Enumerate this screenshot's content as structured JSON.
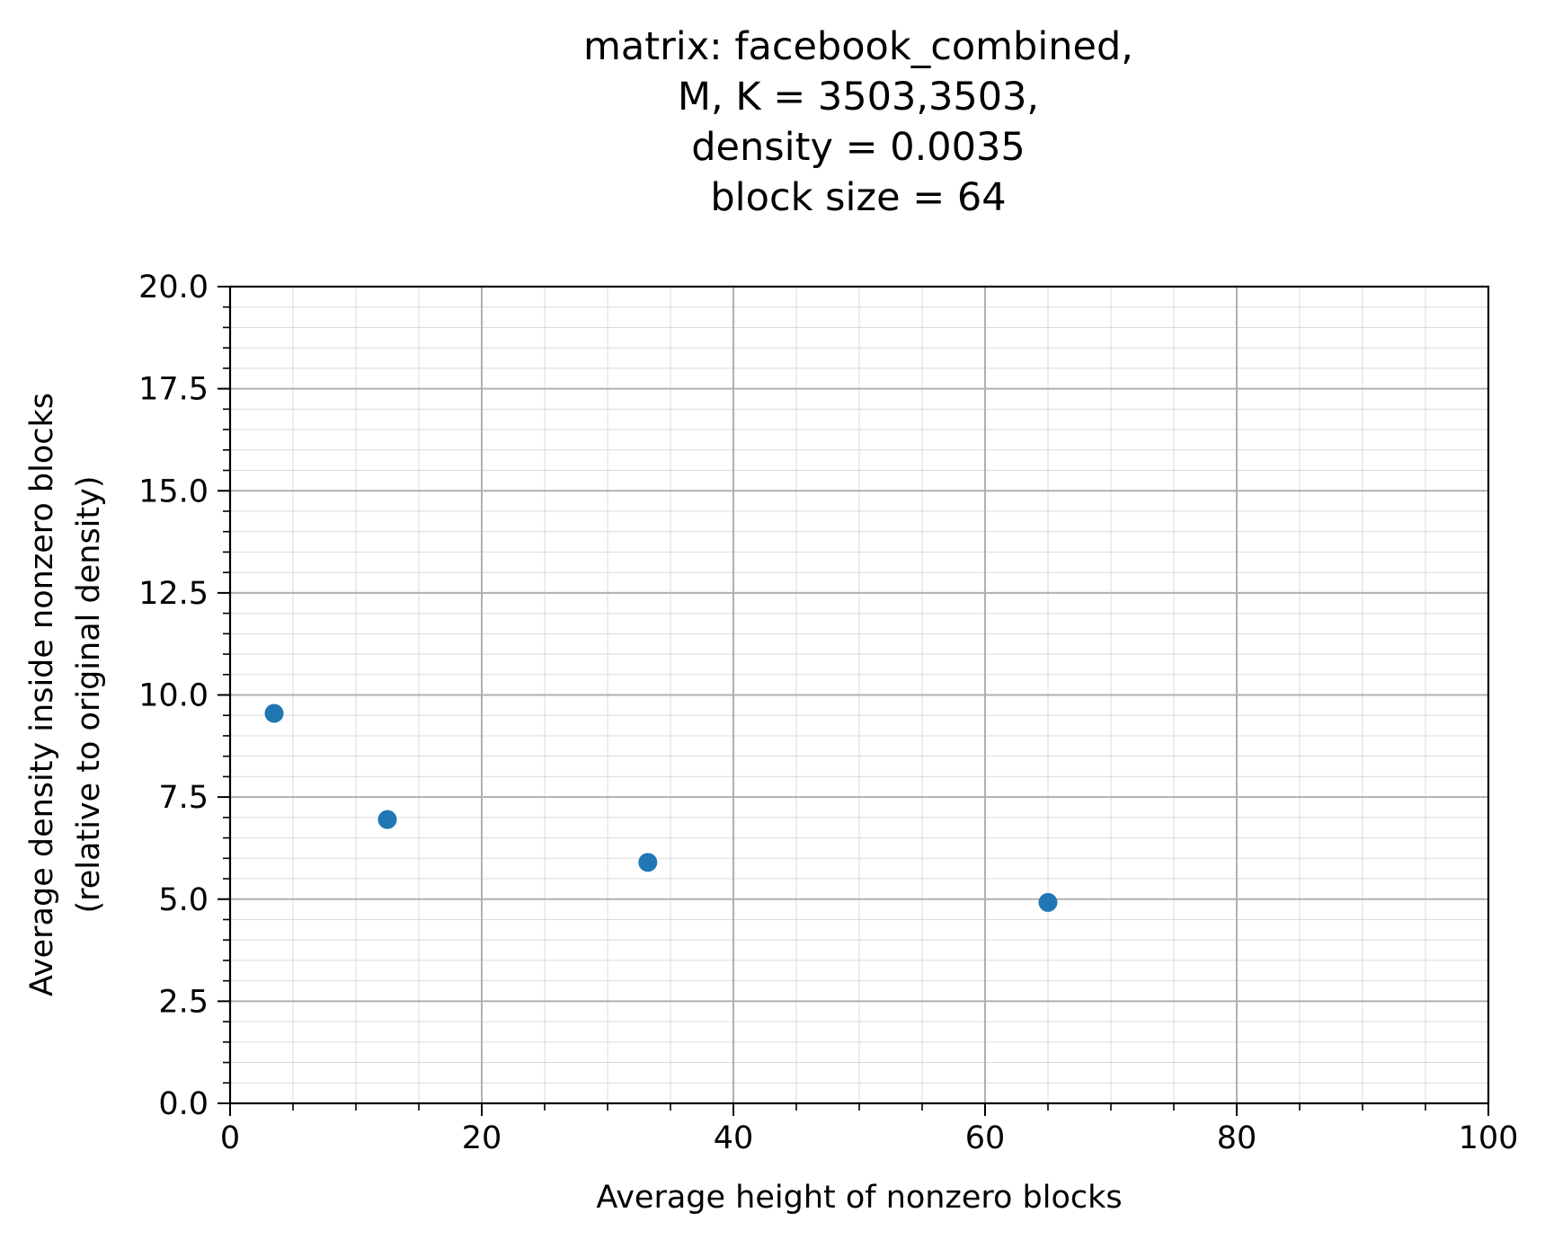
{
  "chart_data": {
    "type": "scatter",
    "title_lines": [
      "matrix: facebook_combined,",
      "M, K = 3503,3503,",
      "density = 0.0035",
      "block size = 64"
    ],
    "xlabel": "Average height of nonzero blocks",
    "ylabel_lines": [
      "Average density inside nonzero blocks",
      "(relative to original density)"
    ],
    "xlim": [
      0,
      100
    ],
    "ylim": [
      0,
      20
    ],
    "x_ticks": [
      0,
      20,
      40,
      60,
      80,
      100
    ],
    "x_tick_labels": [
      "0",
      "20",
      "40",
      "60",
      "80",
      "100"
    ],
    "y_ticks": [
      0,
      2.5,
      5,
      7.5,
      10,
      12.5,
      15,
      17.5,
      20
    ],
    "y_tick_labels": [
      "0.0",
      "2.5",
      "5.0",
      "7.5",
      "10.0",
      "12.5",
      "15.0",
      "17.5",
      "20.0"
    ],
    "x_minor_step": 5,
    "y_minor_step": 0.5,
    "grid": "major and minor",
    "marker_color": "#1f77b4",
    "series": [
      {
        "points": [
          {
            "x": 3.5,
            "y": 9.55
          },
          {
            "x": 12.5,
            "y": 6.95
          },
          {
            "x": 33.2,
            "y": 5.9
          },
          {
            "x": 65.0,
            "y": 4.92
          }
        ]
      }
    ]
  }
}
